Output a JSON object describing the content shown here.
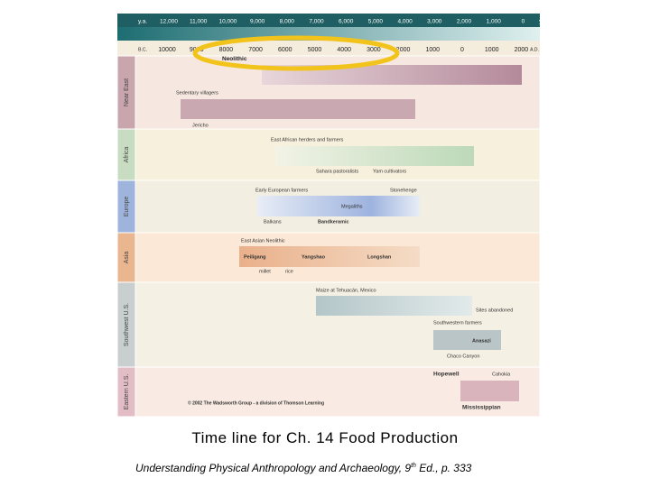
{
  "timeline": {
    "ya_ticks": [
      "y.a.",
      "12,000",
      "11,000",
      "10,000",
      "9,000",
      "8,000",
      "7,000",
      "6,000",
      "5,000",
      "4,000",
      "3,000",
      "2,000",
      "1,000",
      "0",
      "y.a."
    ],
    "bc_ticks": [
      "B.C.",
      "10000",
      "9000",
      "8000",
      "7000",
      "6000",
      "5000",
      "4000",
      "3000",
      "2000",
      "1000",
      "0",
      "1000",
      "2000",
      "A.D."
    ],
    "period": "Neolithic",
    "regions": [
      "Near East",
      "Africa",
      "Europe",
      "Asia",
      "Southwest U.S.",
      "Eastern U.S."
    ],
    "labels": [
      "Sedentary villagers",
      "Jericho",
      "East African herders and farmers",
      "Sahara pastoralists",
      "Yam cultivators",
      "Early European farmers",
      "Stonehenge",
      "Megaliths",
      "Balkans",
      "Bandkeramic",
      "East Asian Neolithic",
      "Peiligang",
      "Yangshao",
      "Longshan",
      "millet",
      "rice",
      "Maize at Tehuacán, Mexico",
      "Sites abandoned",
      "Southwestern farmers",
      "Anasazi",
      "Chaco Canyon",
      "Hopewell",
      "Cahokia",
      "Mississippian"
    ],
    "credit": "© 2002 The Wadsworth Group - a division of Thomson Learning"
  },
  "caption": {
    "title": "Time line for Ch. 14  Food Production",
    "citation": "Understanding Physical Anthropology and Archaeology, 9",
    "citation_sup": "th",
    "citation_end": " Ed., p. 333"
  }
}
